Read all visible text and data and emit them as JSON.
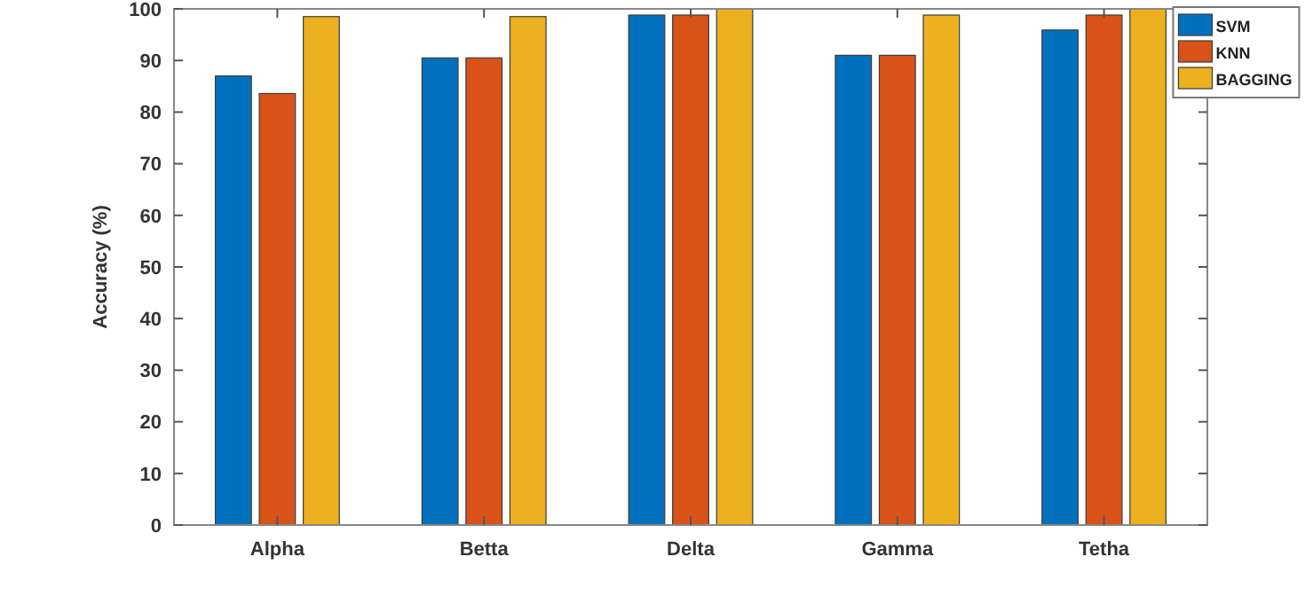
{
  "chart_data": {
    "type": "bar",
    "ylabel": "Accuracy (%)",
    "categories": [
      "Alpha",
      "Betta",
      "Delta",
      "Gamma",
      "Tetha"
    ],
    "series": [
      {
        "name": "SVM",
        "color": "#0072bd",
        "values": [
          87,
          90.5,
          98.8,
          91,
          95.9
        ]
      },
      {
        "name": "KNN",
        "color": "#d95319",
        "values": [
          83.6,
          90.5,
          98.8,
          91,
          98.8
        ]
      },
      {
        "name": "BAGGING",
        "color": "#edb120",
        "values": [
          98.5,
          98.5,
          100,
          98.8,
          100
        ]
      }
    ],
    "ylim": [
      0,
      100
    ],
    "yticks": [
      0,
      10,
      20,
      30,
      40,
      50,
      60,
      70,
      80,
      90,
      100
    ],
    "grid": false,
    "legend": "top right"
  }
}
